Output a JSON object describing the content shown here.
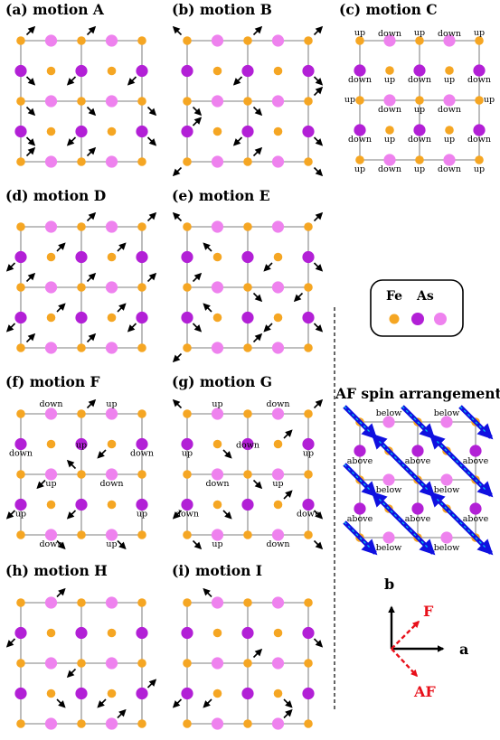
{
  "colors": {
    "fe": "#F5A623",
    "as_dark": "#B220D6",
    "as_light": "#EE82EE",
    "grid": "#999999",
    "arrow": "#000000",
    "spin": "#1010E0",
    "spin_dash": "#00CCEE",
    "red": "#E8101A"
  },
  "panels": [
    {
      "key": "A",
      "title": "(a) motion A"
    },
    {
      "key": "B",
      "title": "(b) motion B"
    },
    {
      "key": "C",
      "title": "(c) motion C"
    },
    {
      "key": "D",
      "title": "(d) motion D"
    },
    {
      "key": "E",
      "title": "(e) motion E"
    },
    {
      "key": "F",
      "title": "(f) motion F"
    },
    {
      "key": "G",
      "title": "(g) motion G"
    },
    {
      "key": "H",
      "title": "(h) motion H"
    },
    {
      "key": "I",
      "title": "(i) motion I"
    }
  ],
  "legend": {
    "fe": "Fe",
    "as": "As"
  },
  "af": {
    "title": "AF spin arrangement",
    "labels": {
      "below": "below",
      "above": "above"
    }
  },
  "axes": {
    "a": "a",
    "b": "b",
    "f": "F",
    "af": "AF"
  },
  "height_words": {
    "up": "up",
    "down": "down"
  }
}
